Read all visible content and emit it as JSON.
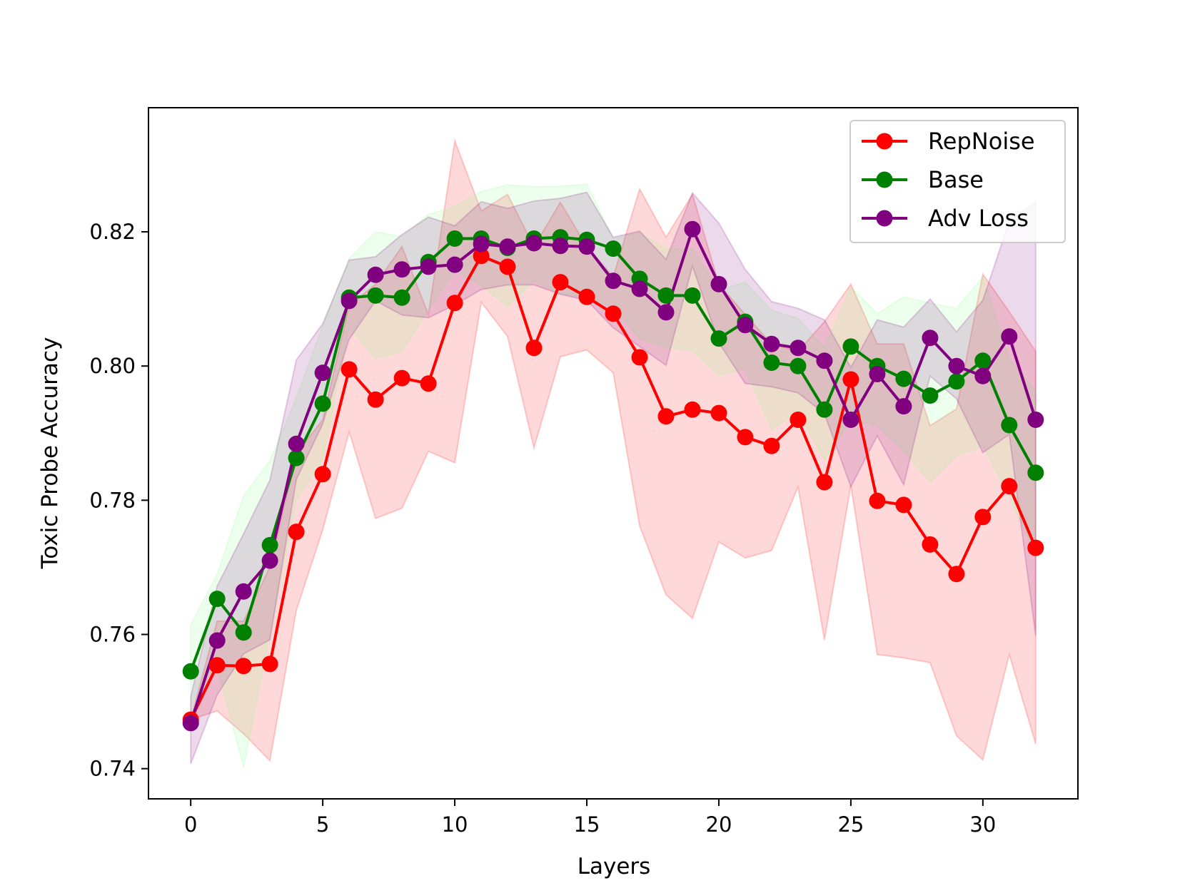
{
  "chart_data": {
    "type": "line",
    "title": "",
    "xlabel": "Layers",
    "ylabel": "Toxic Probe Accuracy",
    "xlim": [
      -1.6,
      33.6
    ],
    "ylim": [
      0.7355,
      0.8385
    ],
    "xticks": [
      0,
      5,
      10,
      15,
      20,
      25,
      30
    ],
    "xtick_labels": [
      "0",
      "5",
      "10",
      "15",
      "20",
      "25",
      "30"
    ],
    "yticks": [
      0.74,
      0.76,
      0.78,
      0.8,
      0.82
    ],
    "ytick_labels": [
      "0.74",
      "0.76",
      "0.78",
      "0.80",
      "0.82"
    ],
    "grid": false,
    "legend_position": "top-right",
    "x": [
      0,
      1,
      2,
      3,
      4,
      5,
      6,
      7,
      8,
      9,
      10,
      11,
      12,
      13,
      14,
      15,
      16,
      17,
      18,
      19,
      20,
      21,
      22,
      23,
      24,
      25,
      26,
      27,
      28,
      29,
      30,
      31,
      32
    ],
    "series": [
      {
        "name": "RepNoise",
        "color": "#ff0000",
        "band_color": "#ff0000",
        "values": [
          0.7473,
          0.7554,
          0.7553,
          0.7556,
          0.7753,
          0.7839,
          0.7995,
          0.795,
          0.7982,
          0.7974,
          0.8094,
          0.8164,
          0.8148,
          0.8027,
          0.8125,
          0.8103,
          0.8078,
          0.8013,
          0.7925,
          0.7935,
          0.793,
          0.7894,
          0.7881,
          0.792,
          0.7827,
          0.798,
          0.7799,
          0.7793,
          0.7734,
          0.769,
          0.7775,
          0.7821,
          0.7729
        ],
        "upper": [
          0.7473,
          0.762,
          0.762,
          0.77,
          0.787,
          0.792,
          0.809,
          0.8122,
          0.8178,
          0.8077,
          0.8336,
          0.8231,
          0.8256,
          0.8178,
          0.8244,
          0.8178,
          0.8133,
          0.8264,
          0.8192,
          0.8256,
          0.8122,
          0.8077,
          0.8033,
          0.8022,
          0.8066,
          0.8122,
          0.8033,
          0.8033,
          0.7911,
          0.7936,
          0.8137,
          0.8081,
          0.8022
        ],
        "lower": [
          0.7473,
          0.7486,
          0.7452,
          0.7412,
          0.7636,
          0.7756,
          0.7902,
          0.7773,
          0.7788,
          0.7873,
          0.7856,
          0.8095,
          0.8044,
          0.7878,
          0.8014,
          0.8024,
          0.799,
          0.7762,
          0.7659,
          0.7624,
          0.7738,
          0.7714,
          0.7725,
          0.782,
          0.7592,
          0.7822,
          0.757,
          0.7565,
          0.7558,
          0.7449,
          0.7413,
          0.757,
          0.7437
        ]
      },
      {
        "name": "Base",
        "color": "#008000",
        "band_color": "#88ff88",
        "values": [
          0.7545,
          0.7653,
          0.7603,
          0.7733,
          0.7863,
          0.7944,
          0.8102,
          0.8105,
          0.8102,
          0.8155,
          0.819,
          0.819,
          0.8176,
          0.819,
          0.8192,
          0.8188,
          0.8175,
          0.813,
          0.8105,
          0.8105,
          0.8041,
          0.8066,
          0.8005,
          0.8,
          0.7935,
          0.8029,
          0.8,
          0.7981,
          0.7956,
          0.7977,
          0.8008,
          0.7912,
          0.7841
        ],
        "upper": [
          0.7614,
          0.769,
          0.7806,
          0.7859,
          0.7952,
          0.806,
          0.816,
          0.82,
          0.8193,
          0.8226,
          0.8238,
          0.826,
          0.827,
          0.8267,
          0.8268,
          0.8271,
          0.819,
          0.8199,
          0.8175,
          0.8174,
          0.8113,
          0.8125,
          0.8083,
          0.8071,
          0.8027,
          0.8118,
          0.8078,
          0.8103,
          0.8094,
          0.8086,
          0.8133,
          0.801,
          0.7962
        ],
        "lower": [
          0.7476,
          0.755,
          0.7402,
          0.76,
          0.78,
          0.786,
          0.8058,
          0.8011,
          0.8022,
          0.8083,
          0.8143,
          0.812,
          0.8088,
          0.8127,
          0.8108,
          0.8102,
          0.8088,
          0.8041,
          0.8028,
          0.8023,
          0.7986,
          0.7996,
          0.7905,
          0.7932,
          0.786,
          0.792,
          0.7911,
          0.7873,
          0.7827,
          0.7866,
          0.7881,
          0.7805,
          0.772
        ]
      },
      {
        "name": "Adv Loss",
        "color": "#800080",
        "band_color": "#800080",
        "values": [
          0.7468,
          0.7591,
          0.7664,
          0.771,
          0.7884,
          0.799,
          0.8097,
          0.8136,
          0.8144,
          0.8148,
          0.8151,
          0.8182,
          0.8178,
          0.8183,
          0.8179,
          0.8178,
          0.8127,
          0.8115,
          0.808,
          0.8204,
          0.8122,
          0.8061,
          0.8033,
          0.8027,
          0.8008,
          0.792,
          0.7988,
          0.794,
          0.8042,
          0.8,
          0.7985,
          0.8044,
          0.792
        ],
        "upper": [
          0.7508,
          0.7672,
          0.775,
          0.783,
          0.8009,
          0.8063,
          0.8158,
          0.8163,
          0.8196,
          0.8222,
          0.8209,
          0.8245,
          0.8235,
          0.8246,
          0.825,
          0.8259,
          0.8192,
          0.8201,
          0.8159,
          0.8258,
          0.8213,
          0.8144,
          0.8096,
          0.8086,
          0.8069,
          0.7998,
          0.8069,
          0.8058,
          0.81,
          0.8051,
          0.8098,
          0.8216,
          0.8245
        ],
        "lower": [
          0.7407,
          0.751,
          0.7571,
          0.7592,
          0.7831,
          0.7914,
          0.804,
          0.8097,
          0.8076,
          0.8072,
          0.8091,
          0.8114,
          0.8121,
          0.8121,
          0.8107,
          0.8098,
          0.8057,
          0.8029,
          0.8001,
          0.8149,
          0.8035,
          0.7974,
          0.7969,
          0.796,
          0.7929,
          0.782,
          0.7896,
          0.7823,
          0.7985,
          0.7951,
          0.7871,
          0.7898,
          0.7598
        ]
      }
    ]
  }
}
